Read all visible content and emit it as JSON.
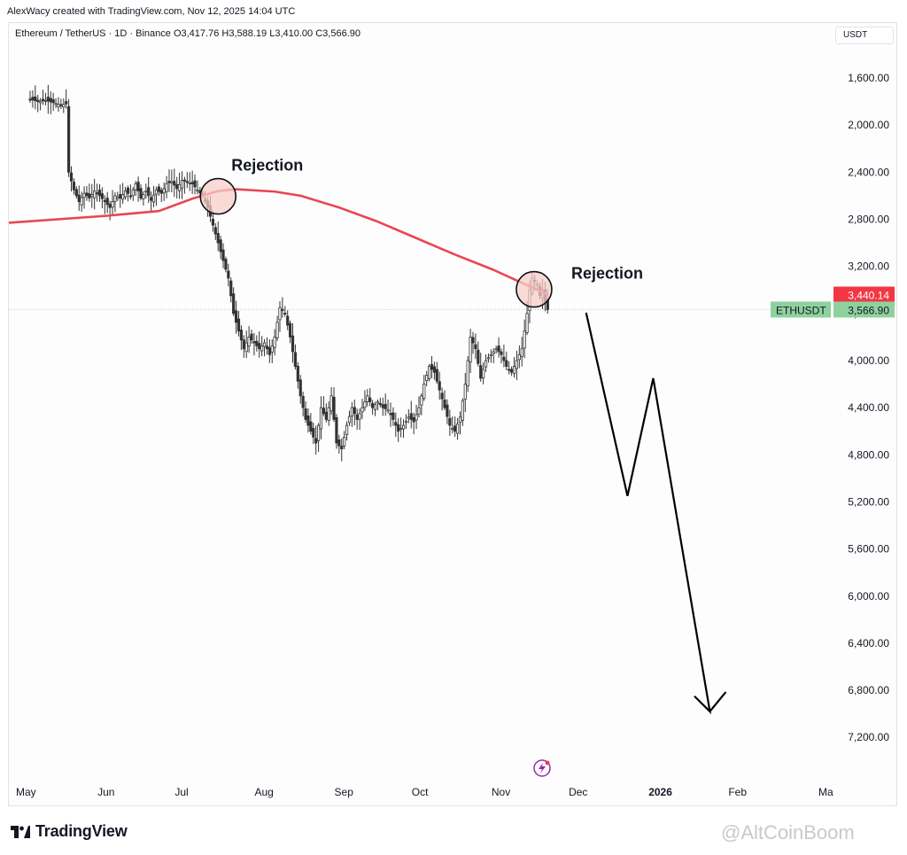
{
  "header": {
    "credit": "AlexWacy created with TradingView.com, Nov 12, 2025 14:04 UTC"
  },
  "symbol_bar": {
    "symbol": "Ethereum / TetherUS · 1D · Binance",
    "open": "O3,417.76",
    "high": "H3,588.19",
    "low": "L3,410.00",
    "close": "C3,566.90"
  },
  "currency_button": "USDT",
  "branding": {
    "logo_text": "TradingView",
    "watermark": "@AltCoinBoom"
  },
  "colors": {
    "ma_line": "#e84654",
    "ma_badge": "#f23645",
    "price_badge": "#8fd19e",
    "candles": "#333333",
    "arrow": "#000000",
    "rejection_fill": "#f7cdc8"
  },
  "chart_data": {
    "type": "candlestick",
    "price_scale": "inverted",
    "yticks": [
      "1,600.00",
      "2,000.00",
      "2,400.00",
      "2,800.00",
      "3,200.00",
      "3,600.00",
      "4,000.00",
      "4,400.00",
      "4,800.00",
      "5,200.00",
      "5,600.00",
      "6,000.00",
      "6,400.00",
      "6,800.00",
      "7,200.00"
    ],
    "ylim": [
      1100,
      7850
    ],
    "x_labels": [
      "May",
      "Jun",
      "Jul",
      "Aug",
      "Sep",
      "Oct",
      "Nov",
      "Dec",
      "2026",
      "Feb",
      "Ma"
    ],
    "x_label_days": [
      0,
      31,
      61,
      92,
      123,
      153,
      184,
      214,
      245,
      276,
      304
    ],
    "candle_close_series": [
      [
        0,
        1780
      ],
      [
        3,
        1800
      ],
      [
        6,
        1790
      ],
      [
        9,
        1810
      ],
      [
        12,
        1830
      ],
      [
        14,
        1820
      ],
      [
        15,
        2400
      ],
      [
        17,
        2550
      ],
      [
        19,
        2650
      ],
      [
        21,
        2580
      ],
      [
        23,
        2620
      ],
      [
        25,
        2560
      ],
      [
        27,
        2600
      ],
      [
        29,
        2650
      ],
      [
        31,
        2700
      ],
      [
        33,
        2600
      ],
      [
        35,
        2620
      ],
      [
        37,
        2560
      ],
      [
        39,
        2600
      ],
      [
        41,
        2500
      ],
      [
        43,
        2620
      ],
      [
        45,
        2560
      ],
      [
        47,
        2640
      ],
      [
        49,
        2550
      ],
      [
        51,
        2580
      ],
      [
        53,
        2500
      ],
      [
        55,
        2480
      ],
      [
        57,
        2540
      ],
      [
        59,
        2470
      ],
      [
        61,
        2480
      ],
      [
        63,
        2500
      ],
      [
        65,
        2550
      ],
      [
        67,
        2600
      ],
      [
        69,
        2700
      ],
      [
        71,
        2850
      ],
      [
        73,
        3000
      ],
      [
        75,
        3150
      ],
      [
        77,
        3300
      ],
      [
        79,
        3600
      ],
      [
        81,
        3750
      ],
      [
        83,
        3900
      ],
      [
        85,
        3800
      ],
      [
        87,
        3850
      ],
      [
        89,
        3900
      ],
      [
        91,
        3850
      ],
      [
        93,
        3950
      ],
      [
        95,
        3800
      ],
      [
        97,
        3550
      ],
      [
        99,
        3600
      ],
      [
        101,
        3800
      ],
      [
        103,
        4050
      ],
      [
        105,
        4300
      ],
      [
        107,
        4500
      ],
      [
        109,
        4600
      ],
      [
        111,
        4700
      ],
      [
        113,
        4400
      ],
      [
        115,
        4500
      ],
      [
        117,
        4300
      ],
      [
        119,
        4700
      ],
      [
        121,
        4750
      ],
      [
        123,
        4550
      ],
      [
        125,
        4400
      ],
      [
        127,
        4500
      ],
      [
        129,
        4400
      ],
      [
        131,
        4300
      ],
      [
        133,
        4400
      ],
      [
        135,
        4350
      ],
      [
        137,
        4400
      ],
      [
        139,
        4420
      ],
      [
        141,
        4500
      ],
      [
        143,
        4600
      ],
      [
        145,
        4550
      ],
      [
        147,
        4480
      ],
      [
        149,
        4520
      ],
      [
        151,
        4400
      ],
      [
        153,
        4200
      ],
      [
        155,
        4050
      ],
      [
        157,
        4100
      ],
      [
        159,
        4250
      ],
      [
        161,
        4400
      ],
      [
        163,
        4550
      ],
      [
        165,
        4600
      ],
      [
        167,
        4480
      ],
      [
        169,
        4200
      ],
      [
        171,
        3800
      ],
      [
        173,
        3900
      ],
      [
        175,
        4150
      ],
      [
        177,
        4000
      ],
      [
        179,
        3950
      ],
      [
        181,
        3900
      ],
      [
        183,
        3950
      ],
      [
        185,
        4050
      ],
      [
        187,
        4100
      ],
      [
        189,
        4000
      ],
      [
        191,
        3900
      ],
      [
        193,
        3600
      ],
      [
        194,
        3400
      ],
      [
        195,
        3300
      ],
      [
        197,
        3350
      ],
      [
        198,
        3450
      ],
      [
        199,
        3400
      ],
      [
        200,
        3500
      ],
      [
        201,
        3566.9
      ]
    ],
    "moving_average": {
      "name": "",
      "values": [
        [
          0,
          2830
        ],
        [
          30,
          2770
        ],
        [
          50,
          2730
        ],
        [
          63,
          2625
        ],
        [
          73,
          2560
        ],
        [
          80,
          2545
        ],
        [
          95,
          2565
        ],
        [
          105,
          2600
        ],
        [
          120,
          2700
        ],
        [
          135,
          2820
        ],
        [
          150,
          2960
        ],
        [
          165,
          3100
        ],
        [
          180,
          3230
        ],
        [
          192,
          3350
        ],
        [
          201,
          3440
        ]
      ]
    },
    "last_price": {
      "label": "ETHUSDT",
      "value": "3,566.90"
    },
    "ma_last_value": "3,440.14",
    "annotations": [
      {
        "text": "Rejection",
        "day": 73
      },
      {
        "text": "Rejection",
        "day": 194
      }
    ],
    "projection_path": [
      [
        216,
        3600
      ],
      [
        232,
        5150
      ],
      [
        242,
        4150
      ],
      [
        264,
        6980
      ],
      [
        258,
        6850
      ],
      [
        264,
        6980
      ],
      [
        270,
        6820
      ]
    ]
  }
}
